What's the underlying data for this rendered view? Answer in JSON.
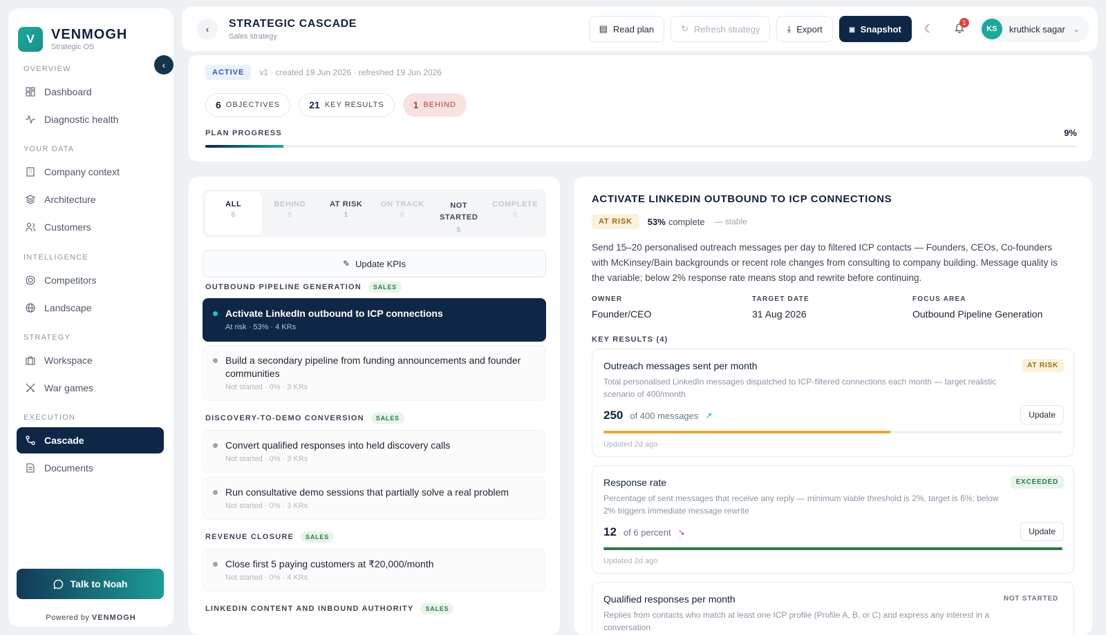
{
  "brand": {
    "logo_letter": "V",
    "name": "VENMOGH",
    "sub": "Strategic OS",
    "accent": "#1aa99b"
  },
  "sidebar": {
    "collapse_icon": "chevron-left-icon",
    "sections": [
      {
        "label": "OVERVIEW",
        "items": [
          {
            "label": "Dashboard",
            "icon": "dashboard-icon"
          },
          {
            "label": "Diagnostic health",
            "icon": "pulse-icon"
          }
        ]
      },
      {
        "label": "YOUR DATA",
        "items": [
          {
            "label": "Company context",
            "icon": "building-icon"
          },
          {
            "label": "Architecture",
            "icon": "layers-icon"
          },
          {
            "label": "Customers",
            "icon": "users-icon"
          }
        ]
      },
      {
        "label": "INTELLIGENCE",
        "items": [
          {
            "label": "Competitors",
            "icon": "target-icon"
          },
          {
            "label": "Landscape",
            "icon": "globe-icon"
          }
        ]
      },
      {
        "label": "STRATEGY",
        "items": [
          {
            "label": "Workspace",
            "icon": "briefcase-icon"
          },
          {
            "label": "War games",
            "icon": "swords-icon"
          }
        ]
      },
      {
        "label": "EXECUTION",
        "items": [
          {
            "label": "Cascade",
            "icon": "route-icon",
            "active": true
          },
          {
            "label": "Documents",
            "icon": "document-icon"
          }
        ]
      }
    ],
    "talk_label": "Talk to Noah",
    "powered_prefix": "Powered by",
    "powered_brand": "VENMOGH"
  },
  "header": {
    "title": "STRATEGIC CASCADE",
    "subtitle": "Sales strategy",
    "read_plan": "Read plan",
    "refresh": "Refresh strategy",
    "export": "Export",
    "snapshot": "Snapshot",
    "notif_count": "1",
    "user_initials": "KS",
    "user_name": "kruthick sagar"
  },
  "summary": {
    "status": "ACTIVE",
    "meta": "v1 · created 19 Jun 2026 · refreshed 19 Jun 2026",
    "objectives_count": "6",
    "objectives_label": "OBJECTIVES",
    "kr_count": "21",
    "kr_label": "KEY RESULTS",
    "behind_count": "1",
    "behind_label": "BEHIND",
    "progress_label": "PLAN PROGRESS",
    "progress_text": "9%",
    "progress_value": 9
  },
  "filters": [
    {
      "label": "ALL",
      "count": "6",
      "active": true
    },
    {
      "label": "BEHIND",
      "count": "0"
    },
    {
      "label": "AT RISK",
      "count": "1",
      "dark": true
    },
    {
      "label": "ON TRACK",
      "count": "0"
    },
    {
      "label": "NOT STARTED",
      "count": "5",
      "dark": true
    },
    {
      "label": "COMPLETE",
      "count": "0"
    }
  ],
  "update_kpis": "Update KPIs",
  "groups": [
    {
      "label": "OUTBOUND PIPELINE GENERATION",
      "tag": "SALES"
    },
    {
      "label": "DISCOVERY-TO-DEMO CONVERSION",
      "tag": "SALES"
    },
    {
      "label": "REVENUE CLOSURE",
      "tag": "SALES"
    },
    {
      "label": "LINKEDIN CONTENT AND INBOUND AUTHORITY",
      "tag": "SALES"
    }
  ],
  "objectives": [
    {
      "title": "Activate LinkedIn outbound to ICP connections",
      "meta": "At risk · 53% · 4 KRs"
    },
    {
      "title": "Build a secondary pipeline from funding announcements and founder communities",
      "meta": "Not started · 0% · 3 KRs"
    },
    {
      "title": "Convert qualified responses into held discovery calls",
      "meta": "Not started · 0% · 3 KRs"
    },
    {
      "title": "Run consultative demo sessions that partially solve a real problem",
      "meta": "Not started · 0% · 3 KRs"
    },
    {
      "title": "Close first 5 paying customers at ₹20,000/month",
      "meta": "Not started · 0% · 4 KRs"
    }
  ],
  "detail": {
    "title": "ACTIVATE LINKEDIN OUTBOUND TO ICP CONNECTIONS",
    "status": "AT RISK",
    "complete_pct": "53%",
    "complete_label": "complete",
    "trend": "— stable",
    "description": "Send 15–20 personalised outreach messages per day to filtered ICP contacts — Founders, CEOs, Co-founders with McKinsey/Bain backgrounds or recent role changes from consulting to company building. Message quality is the variable; below 2% response rate means stop and rewrite before continuing.",
    "owner_label": "OWNER",
    "owner": "Founder/CEO",
    "target_label": "TARGET DATE",
    "target": "31 Aug 2026",
    "focus_label": "FOCUS AREA",
    "focus": "Outbound Pipeline Generation",
    "kr_heading": "KEY RESULTS (4)"
  },
  "key_results": [
    {
      "title": "Outreach messages sent per month",
      "badge": "AT RISK",
      "desc": "Total personalised LinkedIn messages dispatched to ICP-filtered connections each month — target realistic scenario of 400/month",
      "value": "250",
      "of": "of 400 messages",
      "trend": "↗",
      "progress": 62.5,
      "color": "#e2a93b",
      "update": "Update",
      "updated": "Updated 2d ago"
    },
    {
      "title": "Response rate",
      "badge": "EXCEEDED",
      "desc": "Percentage of sent messages that receive any reply — minimum viable threshold is 2%, target is 6%; below 2% triggers immediate message rewrite",
      "value": "12",
      "of": "of 6 percent",
      "trend": "↘",
      "progress": 100,
      "color": "#2f7a44",
      "update": "Update",
      "updated": "Updated 2d ago"
    },
    {
      "title": "Qualified responses per month",
      "badge": "NOT STARTED",
      "desc": "Replies from contacts who match at least one ICP profile (Profile A, B, or C) and express any interest in a conversation"
    }
  ]
}
